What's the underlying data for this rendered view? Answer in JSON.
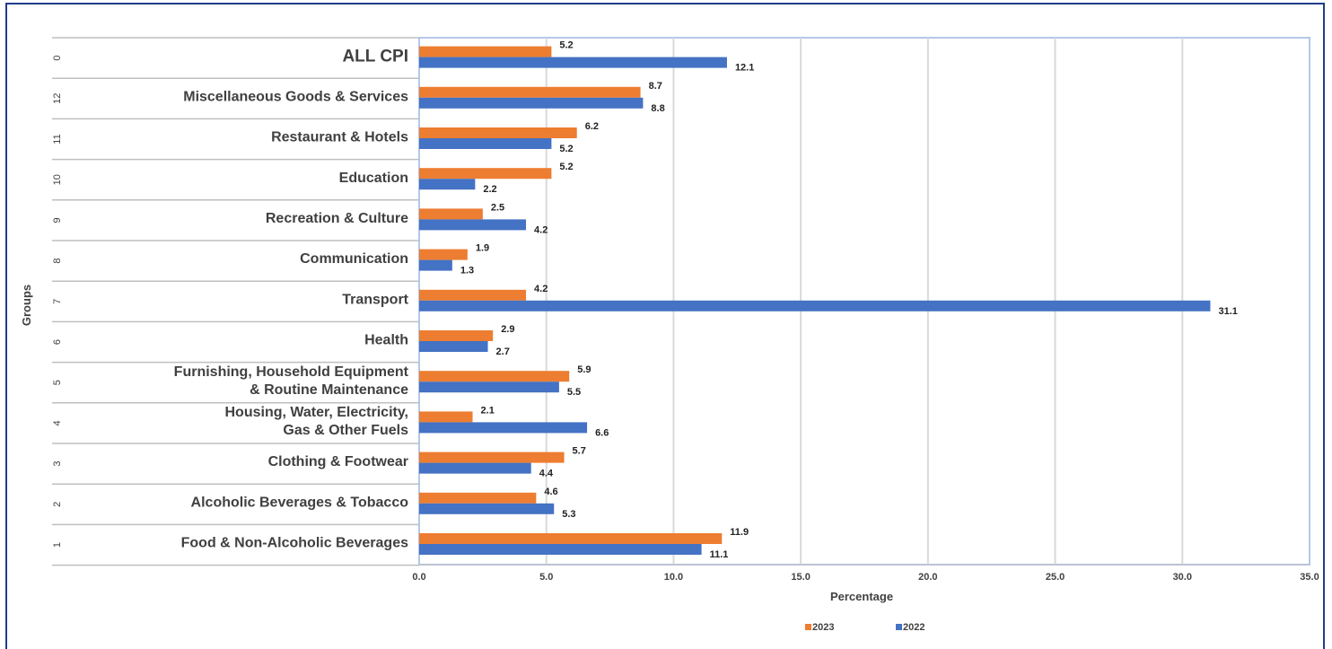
{
  "chart_data": {
    "type": "bar",
    "orientation": "horizontal",
    "title": "",
    "xlabel": "Percentage",
    "ylabel": "Groups",
    "xlim": [
      0,
      35
    ],
    "x_ticks": [
      "0.0",
      "5.0",
      "10.0",
      "15.0",
      "20.0",
      "25.0",
      "30.0",
      "35.0"
    ],
    "grid": true,
    "legend_position": "bottom",
    "categories": [
      {
        "code": "0",
        "label": [
          "ALL CPI"
        ],
        "emphasis": true
      },
      {
        "code": "12",
        "label": [
          "Miscellaneous Goods & Services"
        ]
      },
      {
        "code": "11",
        "label": [
          "Restaurant & Hotels"
        ]
      },
      {
        "code": "10",
        "label": [
          "Education"
        ]
      },
      {
        "code": "9",
        "label": [
          "Recreation & Culture"
        ]
      },
      {
        "code": "8",
        "label": [
          "Communication"
        ]
      },
      {
        "code": "7",
        "label": [
          "Transport"
        ]
      },
      {
        "code": "6",
        "label": [
          "Health"
        ]
      },
      {
        "code": "5",
        "label": [
          "Furnishing, Household Equipment",
          "& Routine Maintenance"
        ]
      },
      {
        "code": "4",
        "label": [
          "Housing, Water, Electricity,",
          "Gas & Other Fuels"
        ]
      },
      {
        "code": "3",
        "label": [
          "Clothing & Footwear"
        ]
      },
      {
        "code": "2",
        "label": [
          "Alcoholic Beverages & Tobacco"
        ]
      },
      {
        "code": "1",
        "label": [
          "Food & Non-Alcoholic Beverages"
        ]
      }
    ],
    "series": [
      {
        "name": "2023",
        "color": "#ed7d31",
        "values": [
          5.2,
          8.7,
          6.2,
          5.2,
          2.5,
          1.9,
          4.2,
          2.9,
          5.9,
          2.1,
          5.7,
          4.6,
          11.9
        ]
      },
      {
        "name": "2022",
        "color": "#4472c4",
        "values": [
          12.1,
          8.8,
          5.2,
          2.2,
          4.2,
          1.3,
          31.1,
          2.7,
          5.5,
          6.6,
          4.4,
          5.3,
          11.1
        ]
      }
    ],
    "colors": {
      "frame": "#1f3c88",
      "plot_border": "#b4c7e7",
      "grid": "#d9d9d9",
      "separator": "#bfbfbf"
    }
  }
}
